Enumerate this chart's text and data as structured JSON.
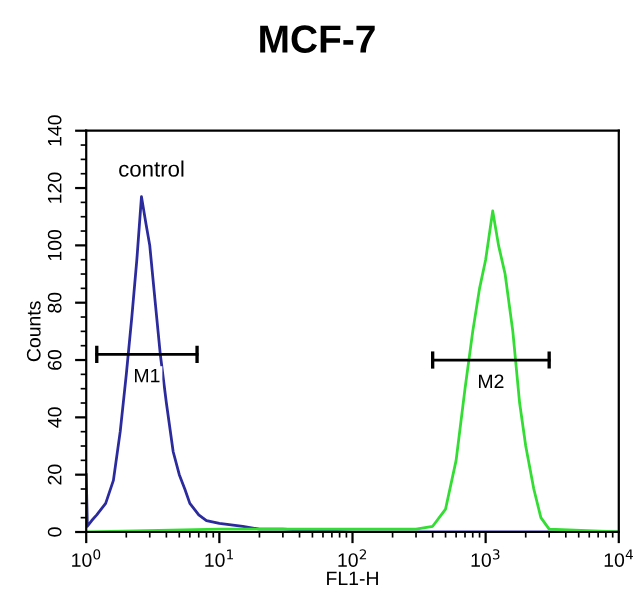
{
  "chart_data": {
    "type": "line",
    "title": "MCF-7",
    "xlabel": "FL1-H",
    "ylabel": "Counts",
    "log": "x",
    "xlim": [
      1,
      10000
    ],
    "xticks": [
      {
        "value": 1,
        "label": "10$^{0}$"
      },
      {
        "value": 10,
        "label": "10$^{1}$"
      },
      {
        "value": 100,
        "label": "10$^{2}$"
      },
      {
        "value": 1000,
        "label": "10$^{3}$"
      },
      {
        "value": 10000,
        "label": "10$^{4}$"
      }
    ],
    "ylim": [
      0,
      140
    ],
    "yticks": [
      0,
      20,
      40,
      60,
      80,
      100,
      120,
      140
    ],
    "grid": false,
    "series": [
      {
        "color": "#2b2b9e",
        "x": [
          1.0,
          1.02,
          1.1,
          1.2,
          1.4,
          1.6,
          1.8,
          2.0,
          2.2,
          2.4,
          2.6,
          2.8,
          3.0,
          3.3,
          3.6,
          4.0,
          4.5,
          5.0,
          5.5,
          6,
          7,
          8,
          10,
          15,
          20,
          30,
          50,
          100,
          1000,
          3000,
          10000
        ],
        "values": [
          20,
          2,
          4,
          6,
          10,
          18,
          35,
          55,
          75,
          95,
          117,
          108,
          100,
          80,
          62,
          45,
          28,
          20,
          15,
          10,
          6,
          4,
          3,
          2,
          1,
          1,
          0.5,
          0,
          0,
          0,
          0
        ]
      },
      {
        "color": "#33dd33",
        "x": [
          1,
          10,
          50,
          100,
          300,
          400,
          500,
          600,
          700,
          800,
          900,
          1000,
          1130,
          1250,
          1400,
          1600,
          1800,
          2000,
          2300,
          2600,
          3000,
          10000
        ],
        "values": [
          0,
          1,
          1,
          1,
          1,
          2,
          8,
          25,
          50,
          70,
          85,
          95,
          112,
          100,
          90,
          70,
          45,
          30,
          15,
          5,
          1,
          0
        ]
      },
      {
        "name": "M1",
        "color": "#000000",
        "x": [
          1.2,
          6.8
        ],
        "values": [
          62,
          62
        ],
        "errors": [
          3,
          3
        ]
      },
      {
        "name": "M2",
        "color": "#000000",
        "x": [
          400,
          3000
        ],
        "values": [
          60,
          60
        ],
        "errors": [
          3,
          3
        ]
      }
    ],
    "annotations": [
      "control"
    ]
  }
}
